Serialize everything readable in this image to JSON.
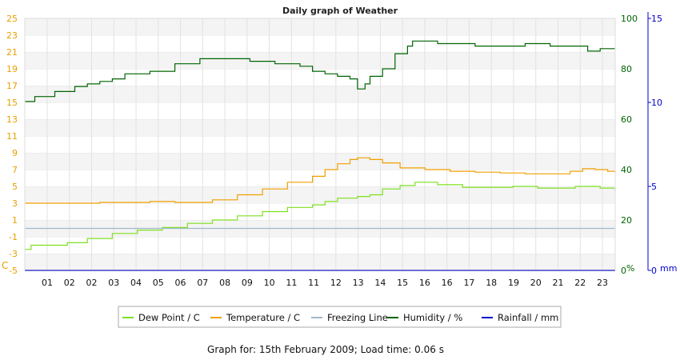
{
  "chart_data": {
    "type": "line",
    "title": "Daily graph of Weather",
    "x_tick_labels": [
      "01",
      "02",
      "02",
      "03",
      "04",
      "05",
      "06",
      "07",
      "08",
      "09",
      "10",
      "11",
      "11",
      "12",
      "13",
      "14",
      "15",
      "16",
      "16",
      "17",
      "18",
      "19",
      "20",
      "21",
      "22",
      "23"
    ],
    "x_range_hours": [
      0,
      23.6
    ],
    "y_left": {
      "ticks": [
        "25",
        "23",
        "21",
        "19",
        "17",
        "15",
        "13",
        "11",
        "9",
        "7",
        "5",
        "3",
        "1",
        "-1",
        "-3",
        "-5"
      ],
      "unit_label": "C",
      "range": [
        -5,
        25
      ],
      "color": "#e8a000"
    },
    "y_mid": {
      "ticks": [
        "100",
        "80",
        "60",
        "40",
        "20",
        "0"
      ],
      "unit_label": "%",
      "range": [
        0,
        100
      ],
      "color": "#006400"
    },
    "y_right": {
      "ticks": [
        "15",
        "10",
        "5",
        "0"
      ],
      "unit_label": "mm",
      "range": [
        0,
        15
      ],
      "color": "#0000cc"
    },
    "grid": true,
    "series": [
      {
        "name": "Dew Point / C",
        "axis": "left",
        "color": "#7fe020",
        "points": [
          [
            0,
            -2.5
          ],
          [
            0.25,
            -2.0
          ],
          [
            1,
            -2.0
          ],
          [
            1.7,
            -1.7
          ],
          [
            2.5,
            -1.2
          ],
          [
            3.5,
            -0.6
          ],
          [
            4.5,
            -0.2
          ],
          [
            5.5,
            0.1
          ],
          [
            6.5,
            0.6
          ],
          [
            7.5,
            1.0
          ],
          [
            8.5,
            1.5
          ],
          [
            9.5,
            2.0
          ],
          [
            10.5,
            2.5
          ],
          [
            11.5,
            2.8
          ],
          [
            12.0,
            3.2
          ],
          [
            12.5,
            3.6
          ],
          [
            13.3,
            3.8
          ],
          [
            13.8,
            4.0
          ],
          [
            14.3,
            4.7
          ],
          [
            15.0,
            5.1
          ],
          [
            15.6,
            5.5
          ],
          [
            16.5,
            5.2
          ],
          [
            17.5,
            4.9
          ],
          [
            18.5,
            4.9
          ],
          [
            19.5,
            5.0
          ],
          [
            20.5,
            4.8
          ],
          [
            21.5,
            4.8
          ],
          [
            22.0,
            5.0
          ],
          [
            23.0,
            4.8
          ],
          [
            23.6,
            4.5
          ]
        ]
      },
      {
        "name": "Temperature / C",
        "axis": "left",
        "color": "#f0a000",
        "points": [
          [
            0,
            3.0
          ],
          [
            1,
            3.0
          ],
          [
            2,
            3.0
          ],
          [
            3,
            3.1
          ],
          [
            4,
            3.1
          ],
          [
            5,
            3.2
          ],
          [
            6,
            3.1
          ],
          [
            7,
            3.1
          ],
          [
            7.5,
            3.4
          ],
          [
            8.5,
            4.0
          ],
          [
            9.5,
            4.7
          ],
          [
            10.5,
            5.5
          ],
          [
            11.5,
            6.2
          ],
          [
            12.0,
            7.0
          ],
          [
            12.5,
            7.7
          ],
          [
            13.0,
            8.2
          ],
          [
            13.3,
            8.4
          ],
          [
            13.8,
            8.2
          ],
          [
            14.3,
            7.8
          ],
          [
            15.0,
            7.2
          ],
          [
            16.0,
            7.0
          ],
          [
            17.0,
            6.8
          ],
          [
            18.0,
            6.7
          ],
          [
            19.0,
            6.6
          ],
          [
            20.0,
            6.5
          ],
          [
            21.0,
            6.5
          ],
          [
            21.8,
            6.8
          ],
          [
            22.3,
            7.1
          ],
          [
            22.8,
            7.0
          ],
          [
            23.3,
            6.8
          ],
          [
            23.6,
            6.6
          ]
        ]
      },
      {
        "name": "Freezing Line",
        "axis": "left",
        "color": "#a0b8cc",
        "points": [
          [
            0,
            0
          ],
          [
            23.6,
            0
          ]
        ]
      },
      {
        "name": "Humidity / %",
        "axis": "mid",
        "color": "#006400",
        "points": [
          [
            0,
            67
          ],
          [
            0.3,
            67
          ],
          [
            0.4,
            69
          ],
          [
            1.0,
            69
          ],
          [
            1.2,
            71
          ],
          [
            1.8,
            71
          ],
          [
            2.0,
            73
          ],
          [
            2.5,
            74
          ],
          [
            3.0,
            75
          ],
          [
            3.5,
            76
          ],
          [
            4.0,
            78
          ],
          [
            5.0,
            79
          ],
          [
            5.8,
            79
          ],
          [
            6.0,
            82
          ],
          [
            7.0,
            84
          ],
          [
            8.5,
            84
          ],
          [
            9.0,
            83
          ],
          [
            10.0,
            82
          ],
          [
            11.0,
            81
          ],
          [
            11.5,
            79
          ],
          [
            12.0,
            78
          ],
          [
            12.5,
            77
          ],
          [
            13.0,
            76
          ],
          [
            13.3,
            72
          ],
          [
            13.6,
            74
          ],
          [
            13.8,
            77
          ],
          [
            14.3,
            80
          ],
          [
            14.8,
            86
          ],
          [
            15.3,
            89
          ],
          [
            15.5,
            91
          ],
          [
            16.0,
            91
          ],
          [
            16.5,
            90
          ],
          [
            17.5,
            90
          ],
          [
            18.0,
            89
          ],
          [
            19.5,
            89
          ],
          [
            20.0,
            90
          ],
          [
            21.0,
            89
          ],
          [
            22.0,
            89
          ],
          [
            22.5,
            87
          ],
          [
            23.0,
            88
          ],
          [
            23.6,
            88
          ]
        ]
      },
      {
        "name": "Rainfall / mm",
        "axis": "right",
        "color": "#0000cc",
        "points": [
          [
            0,
            0
          ],
          [
            23.6,
            0
          ]
        ]
      }
    ],
    "legend_position": "bottom"
  },
  "footer": {
    "text": "Graph for: 15th February 2009; Load time: 0.06 s"
  }
}
